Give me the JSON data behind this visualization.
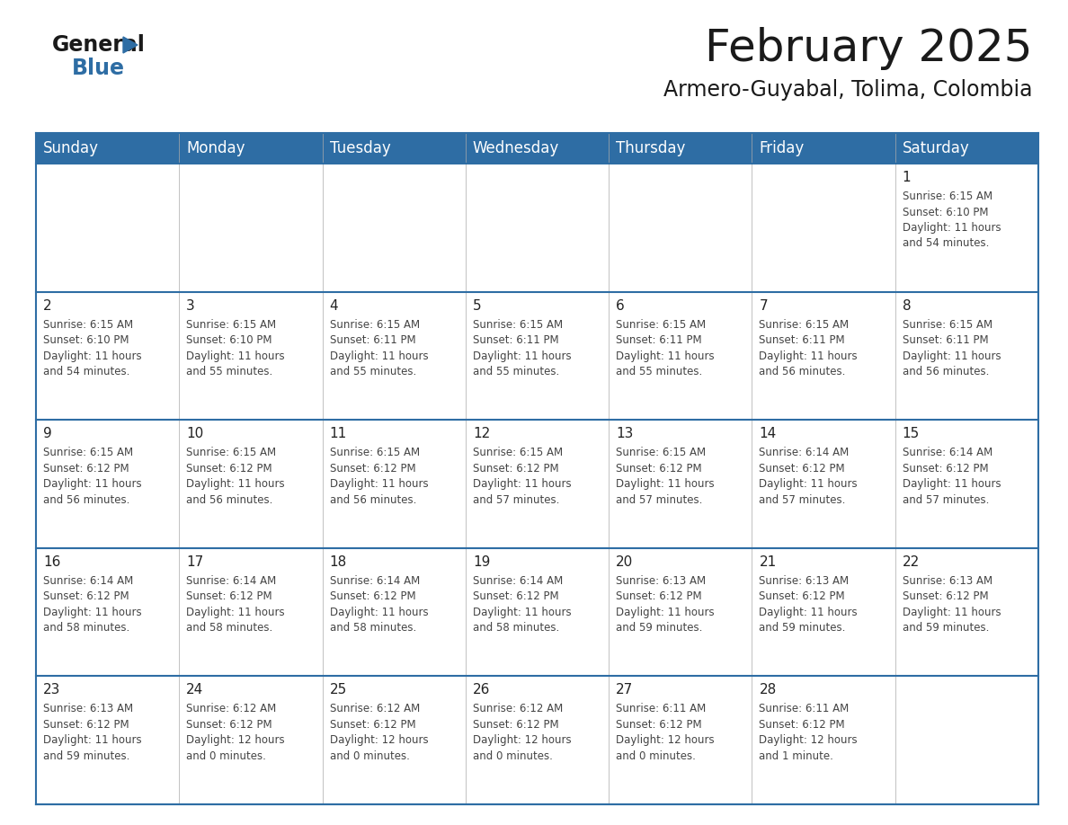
{
  "title": "February 2025",
  "subtitle": "Armero-Guyabal, Tolima, Colombia",
  "header_bg": "#2e6da4",
  "header_fg": "#ffffff",
  "cell_bg": "#ffffff",
  "border_color": "#2e6da4",
  "thin_line_color": "#aaaaaa",
  "day_headers": [
    "Sunday",
    "Monday",
    "Tuesday",
    "Wednesday",
    "Thursday",
    "Friday",
    "Saturday"
  ],
  "calendar": [
    [
      "",
      "",
      "",
      "",
      "",
      "",
      "1\nSunrise: 6:15 AM\nSunset: 6:10 PM\nDaylight: 11 hours\nand 54 minutes."
    ],
    [
      "2\nSunrise: 6:15 AM\nSunset: 6:10 PM\nDaylight: 11 hours\nand 54 minutes.",
      "3\nSunrise: 6:15 AM\nSunset: 6:10 PM\nDaylight: 11 hours\nand 55 minutes.",
      "4\nSunrise: 6:15 AM\nSunset: 6:11 PM\nDaylight: 11 hours\nand 55 minutes.",
      "5\nSunrise: 6:15 AM\nSunset: 6:11 PM\nDaylight: 11 hours\nand 55 minutes.",
      "6\nSunrise: 6:15 AM\nSunset: 6:11 PM\nDaylight: 11 hours\nand 55 minutes.",
      "7\nSunrise: 6:15 AM\nSunset: 6:11 PM\nDaylight: 11 hours\nand 56 minutes.",
      "8\nSunrise: 6:15 AM\nSunset: 6:11 PM\nDaylight: 11 hours\nand 56 minutes."
    ],
    [
      "9\nSunrise: 6:15 AM\nSunset: 6:12 PM\nDaylight: 11 hours\nand 56 minutes.",
      "10\nSunrise: 6:15 AM\nSunset: 6:12 PM\nDaylight: 11 hours\nand 56 minutes.",
      "11\nSunrise: 6:15 AM\nSunset: 6:12 PM\nDaylight: 11 hours\nand 56 minutes.",
      "12\nSunrise: 6:15 AM\nSunset: 6:12 PM\nDaylight: 11 hours\nand 57 minutes.",
      "13\nSunrise: 6:15 AM\nSunset: 6:12 PM\nDaylight: 11 hours\nand 57 minutes.",
      "14\nSunrise: 6:14 AM\nSunset: 6:12 PM\nDaylight: 11 hours\nand 57 minutes.",
      "15\nSunrise: 6:14 AM\nSunset: 6:12 PM\nDaylight: 11 hours\nand 57 minutes."
    ],
    [
      "16\nSunrise: 6:14 AM\nSunset: 6:12 PM\nDaylight: 11 hours\nand 58 minutes.",
      "17\nSunrise: 6:14 AM\nSunset: 6:12 PM\nDaylight: 11 hours\nand 58 minutes.",
      "18\nSunrise: 6:14 AM\nSunset: 6:12 PM\nDaylight: 11 hours\nand 58 minutes.",
      "19\nSunrise: 6:14 AM\nSunset: 6:12 PM\nDaylight: 11 hours\nand 58 minutes.",
      "20\nSunrise: 6:13 AM\nSunset: 6:12 PM\nDaylight: 11 hours\nand 59 minutes.",
      "21\nSunrise: 6:13 AM\nSunset: 6:12 PM\nDaylight: 11 hours\nand 59 minutes.",
      "22\nSunrise: 6:13 AM\nSunset: 6:12 PM\nDaylight: 11 hours\nand 59 minutes."
    ],
    [
      "23\nSunrise: 6:13 AM\nSunset: 6:12 PM\nDaylight: 11 hours\nand 59 minutes.",
      "24\nSunrise: 6:12 AM\nSunset: 6:12 PM\nDaylight: 12 hours\nand 0 minutes.",
      "25\nSunrise: 6:12 AM\nSunset: 6:12 PM\nDaylight: 12 hours\nand 0 minutes.",
      "26\nSunrise: 6:12 AM\nSunset: 6:12 PM\nDaylight: 12 hours\nand 0 minutes.",
      "27\nSunrise: 6:11 AM\nSunset: 6:12 PM\nDaylight: 12 hours\nand 0 minutes.",
      "28\nSunrise: 6:11 AM\nSunset: 6:12 PM\nDaylight: 12 hours\nand 1 minute.",
      ""
    ]
  ],
  "title_fontsize": 36,
  "subtitle_fontsize": 17,
  "header_fontsize": 12,
  "daynum_fontsize": 11,
  "cell_fontsize": 8.5,
  "logo_general_color": "#1a1a1a",
  "logo_blue_color": "#2e6da4",
  "logo_triangle_color": "#2e6da4"
}
